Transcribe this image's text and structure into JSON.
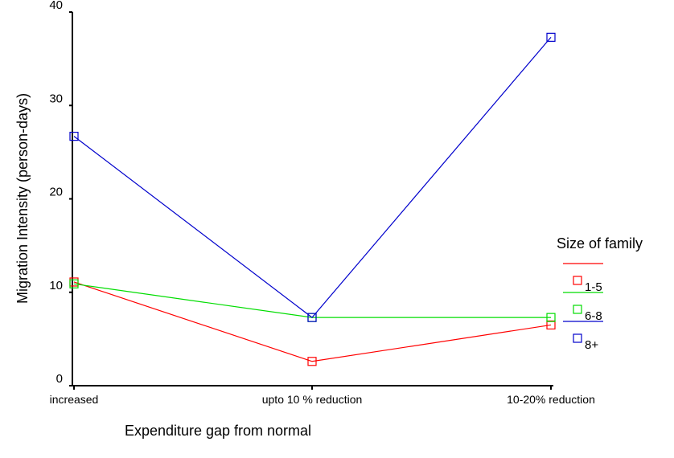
{
  "chart_data": {
    "type": "line",
    "title": "",
    "xlabel": "Expenditure gap from normal",
    "ylabel": "Migration Intensity (person-days)",
    "categories": [
      "increased",
      "upto 10 % reduction",
      "10-20% reduction"
    ],
    "ylim": [
      0,
      40
    ],
    "yticks": [
      0,
      10,
      20,
      30,
      40
    ],
    "grid": false,
    "legend": {
      "title": "Size of family",
      "placement": "right"
    },
    "series": [
      {
        "name": "1-5",
        "color": "#ff0000",
        "values": [
          11.1,
          2.6,
          6.5
        ]
      },
      {
        "name": "6-8",
        "color": "#00dd00",
        "values": [
          10.9,
          7.3,
          7.3
        ]
      },
      {
        "name": "8+",
        "color": "#0000cc",
        "values": [
          26.7,
          7.3,
          37.3
        ]
      }
    ]
  }
}
